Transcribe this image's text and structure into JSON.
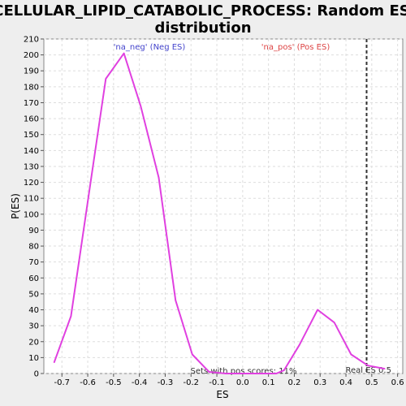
{
  "chart_data": {
    "type": "line",
    "title": "CELLULAR_LIPID_CATABOLIC_PROCESS: Random ES distribution",
    "title_lines": [
      "CELLULAR_LIPID_CATABOLIC_PROCESS: Random ES",
      "distribution"
    ],
    "xlabel": "ES",
    "ylabel": "P(ES)",
    "xlim": [
      -0.77,
      0.62
    ],
    "ylim": [
      0,
      210
    ],
    "x_ticks": [
      -0.7,
      -0.6,
      -0.5,
      -0.4,
      -0.3,
      -0.2,
      -0.1,
      0.0,
      0.1,
      0.2,
      0.3,
      0.4,
      0.5,
      0.6
    ],
    "x_tick_labels": [
      "-0.7",
      "-0.6",
      "-0.5",
      "-0.4",
      "-0.3",
      "-0.2",
      "-0.1",
      "0.0",
      "0.1",
      "0.2",
      "0.3",
      "0.4",
      "0.5",
      "0.6"
    ],
    "y_ticks": [
      0,
      10,
      20,
      30,
      40,
      50,
      60,
      70,
      80,
      90,
      100,
      110,
      120,
      130,
      140,
      150,
      160,
      170,
      180,
      190,
      200,
      210
    ],
    "grid": true,
    "series": [
      {
        "color": "#e040e0",
        "x": [
          -0.73,
          -0.665,
          -0.6,
          -0.53,
          -0.46,
          -0.395,
          -0.325,
          -0.26,
          -0.195,
          -0.13,
          -0.065,
          0.0,
          0.065,
          0.13,
          0.16,
          0.22,
          0.29,
          0.355,
          0.42,
          0.485,
          0.55
        ],
        "y": [
          7,
          36,
          108,
          185,
          201,
          168,
          123,
          46,
          12,
          1,
          0,
          0,
          0,
          0,
          2,
          18,
          40,
          32,
          12,
          5,
          3
        ]
      }
    ],
    "vline": {
      "x": 0.48,
      "color": "#333333",
      "style": "dashed",
      "label": "Real ES 0.5"
    },
    "annotations": {
      "neg": {
        "text": "'na_neg' (Neg ES)",
        "color": "#4444cc"
      },
      "pos": {
        "text": "'na_pos' (Pos ES)",
        "color": "#dd4444"
      },
      "sets": {
        "text": "Sets with pos scores: 11%",
        "color": "#333333"
      }
    },
    "colors": {
      "plot_bg": "#ffffff",
      "page_bg": "#eeeeee",
      "grid": "#dddddd"
    }
  }
}
